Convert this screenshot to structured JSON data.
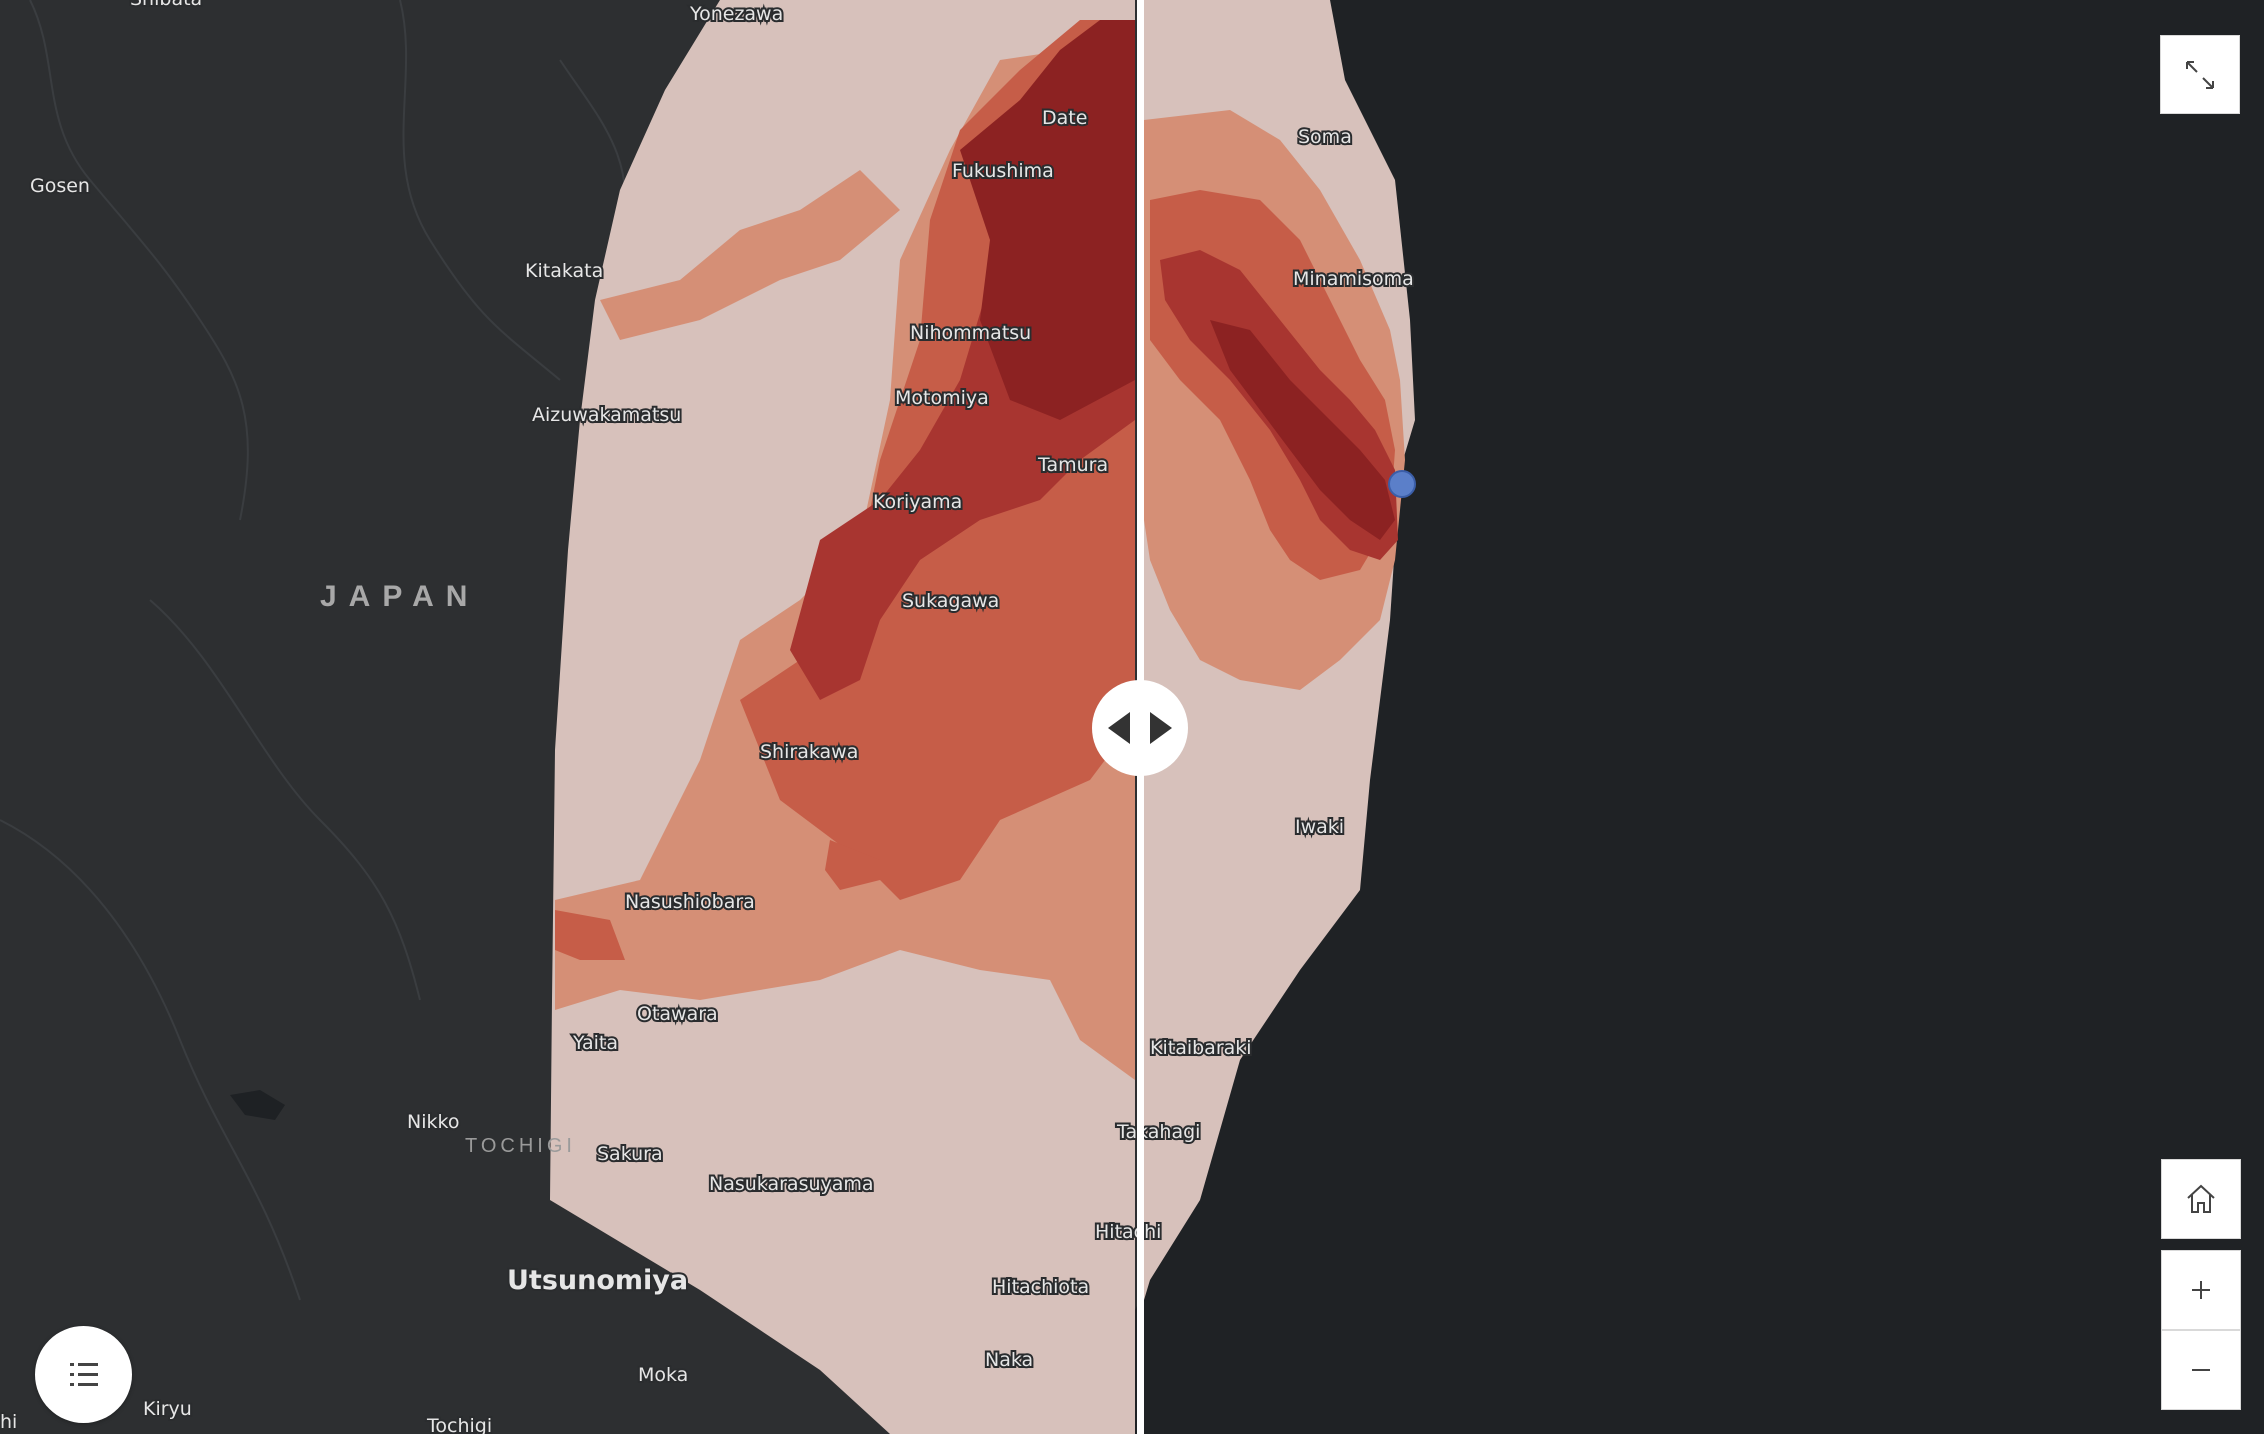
{
  "map": {
    "region_label": "JAPAN",
    "prefecture_label": "TOCHIGI",
    "cities": {
      "shibata": "Shibata",
      "yonezawa": "Yonezawa",
      "gosen": "Gosen",
      "kitakata": "Kitakata",
      "aizuwakamatsu": "Aizuwakamatsu",
      "date": "Date",
      "fukushima": "Fukushima",
      "nihommatsu": "Nihommatsu",
      "motomiya": "Motomiya",
      "tamura": "Tamura",
      "koriyama": "Koriyama",
      "sukagawa": "Sukagawa",
      "shirakawa": "Shirakawa",
      "nasushiobara": "Nasushiobara",
      "otawara": "Otawara",
      "yaita": "Yaita",
      "nikko": "Nikko",
      "sakura": "Sakura",
      "nasukarasuyama": "Nasukarasuyama",
      "utsunomiya": "Utsunomiya",
      "moka": "Moka",
      "kiryu": "Kiryu",
      "tochigi": "Tochigi",
      "hitachiota": "Hitachiota",
      "naka": "Naka",
      "hitachi": "Hitachi",
      "takahagi": "Takahagi",
      "kitaibaraki": "Kitaibaraki",
      "iwaki": "Iwaki",
      "minamisoma": "Minamisoma",
      "soma": "Soma",
      "edge_hi": "hi"
    },
    "colors": {
      "background": "#2d2f31",
      "water": "#1e2124",
      "level_0": "#d7c1bb",
      "level_1": "#d58f76",
      "level_2": "#c65d48",
      "level_3": "#a83530",
      "level_4": "#8c2222",
      "marker": "#5b7fc9"
    }
  },
  "controls": {
    "fullscreen_icon": "expand-icon",
    "home_icon": "home-icon",
    "zoom_in_icon": "plus-icon",
    "zoom_out_icon": "minus-icon",
    "legend_icon": "list-icon",
    "swipe_icon": "swipe-arrows-icon"
  }
}
